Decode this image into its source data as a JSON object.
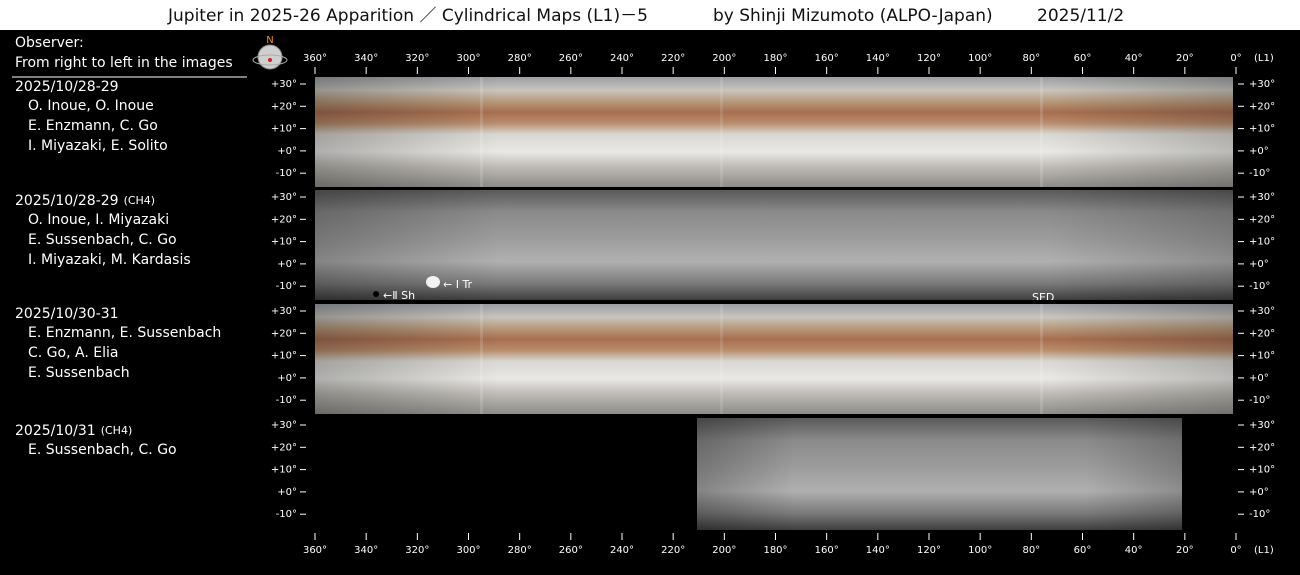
{
  "header": {
    "title": "Jupiter in 2025-26 Apparition ／ Cylindrical Maps (L1)－5",
    "author": "by Shinji Mizumoto (ALPO-Japan)",
    "date": "2025/11/2"
  },
  "observer": {
    "label": "Observer:",
    "note": "From right to left in the images"
  },
  "sections": [
    {
      "date": "2025/10/28-29",
      "observers": [
        "O. Inoue, O. Inoue",
        "E. Enzmann, C. Go",
        "I. Miyazaki, E. Solito"
      ]
    },
    {
      "date": "2025/10/28-29",
      "filter": "(CH4)",
      "observers": [
        "O. Inoue, I. Miyazaki",
        "E. Sussenbach, C. Go",
        "I. Miyazaki, M. Kardasis"
      ]
    },
    {
      "date": "2025/10/30-31",
      "observers": [
        "E. Enzmann, E. Sussenbach",
        "C. Go, A. Elia",
        "E. Sussenbach"
      ]
    },
    {
      "date": "2025/10/31",
      "filter": "(CH4)",
      "observers": [
        "E. Sussenbach, C. Go"
      ]
    }
  ],
  "compass": "N",
  "longitudes": [
    "360°",
    "340°",
    "320°",
    "300°",
    "280°",
    "260°",
    "240°",
    "220°",
    "200°",
    "180°",
    "160°",
    "140°",
    "120°",
    "100°",
    "80°",
    "60°",
    "40°",
    "20°",
    "0°"
  ],
  "system": "(L1)",
  "latitudes": [
    "+30°",
    "+20°",
    "+10°",
    "+0°",
    "-10°"
  ],
  "annotations": {
    "shadow": "←Ⅱ Sh",
    "transit": "← I Tr",
    "sed": "SED"
  }
}
